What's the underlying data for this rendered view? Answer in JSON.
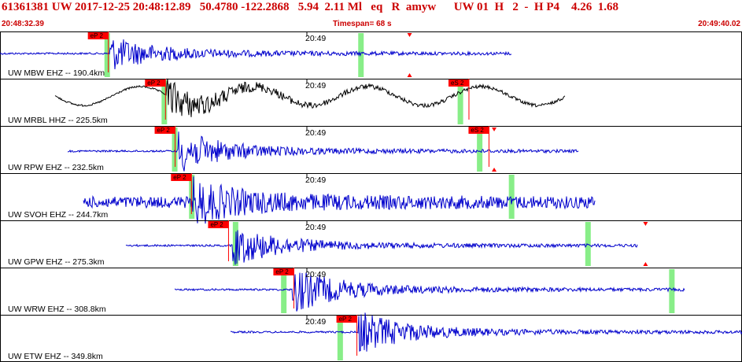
{
  "header": {
    "title": "61361381 UW 2017-12-25 20:48:12.89   50.4780 -122.2868   5.94  2.11 Ml   eq   R  amyw      UW 01  H   2  -  H P4    4.26  1.68",
    "start_time": "20:48:32.39",
    "timespan": "Timespan=  68 s",
    "end_time": "20:49:40.02"
  },
  "colors": {
    "accent": "#cc0000",
    "trace_blue": "#0000cc",
    "trace_black": "#000000",
    "pick_red": "#ff0000",
    "window_green": "#88ee88"
  },
  "traces": [
    {
      "label": "UW MBW EHZ -- 190.4km",
      "color": "blue",
      "time_label": "20:49",
      "picks": [
        {
          "label": "eP 2",
          "t": 0.146
        }
      ],
      "green": [
        0.145,
        0.487
      ],
      "markers": [
        0.552
      ]
    },
    {
      "label": "UW MRBL HHZ -- 225.5km",
      "color": "black",
      "time_label": "20:49",
      "picks": [
        {
          "label": "eP 2",
          "t": 0.223
        },
        {
          "label": "eS 2",
          "t": 0.632
        }
      ],
      "green": [
        0.222,
        0.621
      ],
      "markers": []
    },
    {
      "label": "UW RPW EHZ -- 232.5km",
      "color": "blue",
      "time_label": "20:49",
      "picks": [
        {
          "label": "eP 2",
          "t": 0.236
        },
        {
          "label": "eS 2",
          "t": 0.659
        }
      ],
      "green": [
        0.236,
        0.647
      ],
      "markers": [
        0.666
      ]
    },
    {
      "label": "UW SVOH EHZ -- 244.7km",
      "color": "blue",
      "time_label": "20:49",
      "picks": [
        {
          "label": "eP 2",
          "t": 0.258
        }
      ],
      "green": [
        0.259,
        0.69
      ],
      "markers": []
    },
    {
      "label": "UW GPW EHZ -- 275.3km",
      "color": "blue",
      "time_label": "20:49",
      "picks": [
        {
          "label": "eP 2",
          "t": 0.308
        }
      ],
      "green": [
        0.318,
        0.793
      ],
      "markers": [
        0.87
      ]
    },
    {
      "label": "UW WRW EHZ -- 308.8km",
      "color": "blue",
      "time_label": "20:49",
      "picks": [
        {
          "label": "eP 2",
          "t": 0.396
        }
      ],
      "green": [
        0.383,
        0.906
      ],
      "markers": []
    },
    {
      "label": "UW ETW EHZ -- 349.8km",
      "color": "blue",
      "time_label": "20:49",
      "picks": [
        {
          "label": "eP 2",
          "t": 0.481
        }
      ],
      "green": [
        0.459
      ],
      "markers": []
    }
  ]
}
